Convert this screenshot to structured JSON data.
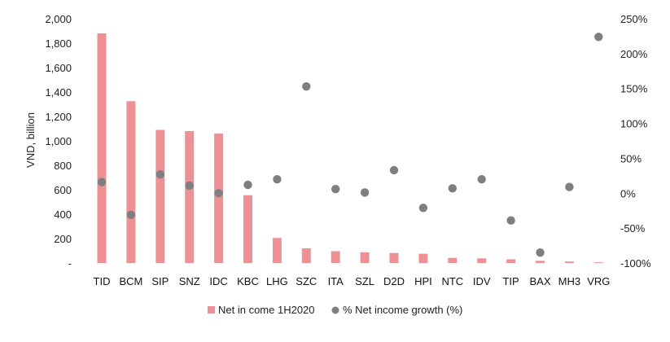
{
  "chart_data": {
    "type": "bar",
    "categories": [
      "TID",
      "BCM",
      "SIP",
      "SNZ",
      "IDC",
      "KBC",
      "LHG",
      "SZC",
      "ITA",
      "SZL",
      "D2D",
      "HPI",
      "NTC",
      "IDV",
      "TIP",
      "BAX",
      "MH3",
      "VRG"
    ],
    "series": [
      {
        "name": "Net in come 1H2020",
        "type": "bar",
        "axis": "left",
        "color": "#ee9195",
        "values": [
          1880,
          1325,
          1090,
          1080,
          1060,
          555,
          205,
          120,
          97,
          88,
          82,
          76,
          42,
          38,
          30,
          18,
          12,
          6
        ]
      },
      {
        "name": "% Net income growth (%)",
        "type": "scatter",
        "axis": "right",
        "color": "#7f7f7f",
        "values": [
          16,
          -31,
          27,
          11,
          0,
          12,
          20,
          153,
          6,
          1,
          33,
          -21,
          7,
          20,
          -39,
          -85,
          9,
          224
        ]
      }
    ],
    "ylabel": "VND, billion",
    "ylim": [
      0,
      2000
    ],
    "yticks": [
      "-",
      "200",
      "400",
      "600",
      "800",
      "1,000",
      "1,200",
      "1,400",
      "1,600",
      "1,800",
      "2,000"
    ],
    "y2lim": [
      -100,
      250
    ],
    "y2ticks": [
      "-100%",
      "-50%",
      "0%",
      "50%",
      "100%",
      "150%",
      "200%",
      "250%"
    ],
    "legend_position": "bottom",
    "grid": false
  }
}
